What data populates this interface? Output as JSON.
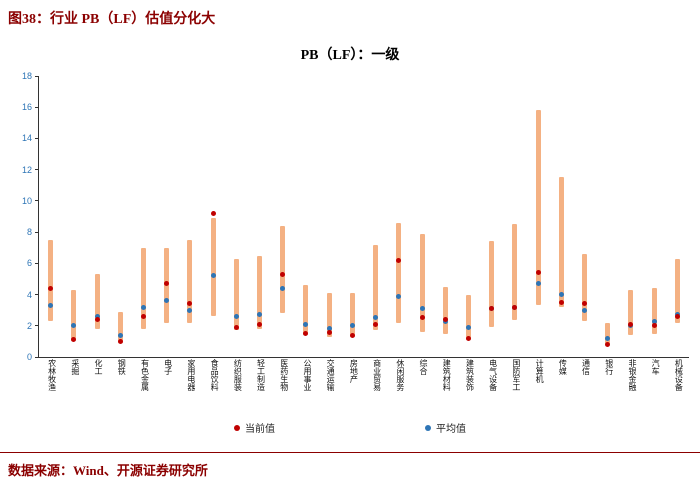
{
  "caption": "图38：行业 PB（LF）估值分化大",
  "footer": "数据来源：Wind、开源证券研究所",
  "chart_data": {
    "type": "bar",
    "subtype": "range-bar-with-dots",
    "title": "PB（LF）：一级",
    "xlabel": "",
    "ylabel": "",
    "ylim": [
      0,
      18
    ],
    "ytick_step": 2,
    "grid": false,
    "legend_position": "bottom",
    "categories": [
      "农林牧渔",
      "采掘",
      "化工",
      "钢铁",
      "有色金属",
      "电子",
      "家用电器",
      "食品饮料",
      "纺织服装",
      "轻工制造",
      "医药生物",
      "公用事业",
      "交通运输",
      "房地产",
      "商业贸易",
      "休闲服务",
      "综合",
      "建筑材料",
      "建筑装饰",
      "电气设备",
      "国防军工",
      "计算机",
      "传媒",
      "通信",
      "银行",
      "非银金融",
      "汽车",
      "机械设备"
    ],
    "range_low": [
      2.3,
      1.0,
      1.8,
      0.9,
      1.8,
      2.2,
      2.2,
      2.6,
      1.7,
      1.8,
      2.8,
      1.4,
      1.3,
      1.3,
      1.7,
      2.2,
      1.6,
      1.5,
      1.1,
      1.9,
      2.4,
      3.3,
      3.2,
      2.3,
      0.8,
      1.4,
      1.5,
      2.2
    ],
    "range_high": [
      7.5,
      4.3,
      5.3,
      2.9,
      7.0,
      7.0,
      7.5,
      8.9,
      6.3,
      6.5,
      8.4,
      4.6,
      4.1,
      4.1,
      7.2,
      8.6,
      7.9,
      4.5,
      4.0,
      7.4,
      8.5,
      15.8,
      11.5,
      6.6,
      2.2,
      4.3,
      4.4,
      6.3
    ],
    "series": [
      {
        "name": "当前值",
        "values": [
          4.4,
          1.1,
          2.4,
          1.0,
          2.6,
          4.7,
          3.4,
          9.2,
          1.9,
          2.1,
          5.3,
          1.5,
          1.6,
          1.4,
          2.1,
          6.2,
          2.5,
          2.4,
          1.2,
          3.1,
          3.2,
          5.4,
          3.5,
          3.4,
          0.8,
          2.1,
          2.0,
          2.6
        ]
      },
      {
        "name": "平均值",
        "values": [
          3.3,
          2.0,
          2.6,
          1.4,
          3.2,
          3.6,
          3.0,
          5.2,
          2.6,
          2.7,
          4.4,
          2.1,
          1.8,
          2.0,
          2.5,
          3.9,
          3.1,
          2.3,
          1.9,
          3.1,
          3.2,
          4.7,
          4.0,
          3.0,
          1.2,
          2.0,
          2.3,
          2.7
        ]
      }
    ],
    "colors": {
      "bar": "#F4B183",
      "current": "#C00000",
      "average": "#2E75B6",
      "y_axis_labels": "#2E75B6",
      "caption": "#8B0000"
    }
  }
}
